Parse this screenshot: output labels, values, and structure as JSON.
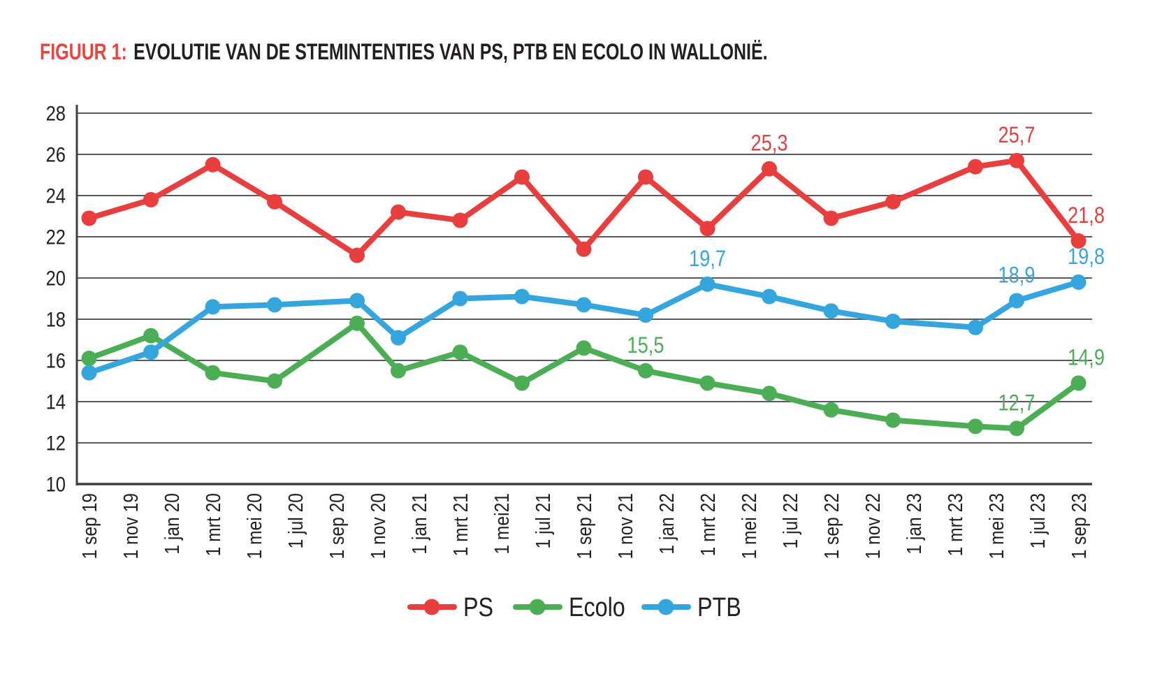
{
  "title": {
    "prefix": "FIGUUR 1:",
    "text": "EVOLUTIE VAN DE STEMINTENTIES VAN PS, PTB EN ECOLO IN WALLONIË."
  },
  "colors": {
    "title_accent": "#e8463c",
    "ps": "#e83e3e",
    "ecolo": "#4bae55",
    "ptb": "#35a6dd",
    "gridline": "#59595b",
    "axis": "#3f3f41",
    "text": "#231f20"
  },
  "chart_data": {
    "type": "line",
    "title": "FIGUUR 1: EVOLUTIE VAN DE STEMINTENTIES VAN PS, PTB EN ECOLO IN WALLONIË.",
    "ylim": [
      10,
      28
    ],
    "y_step": 2,
    "grid": "horizontal",
    "x_tick_labels": [
      "1 sep 19",
      "1 nov 19",
      "1 jan 20",
      "1 mrt 20",
      "1 mei 20",
      "1 jul 20",
      "1 sep 20",
      "1 nov 20",
      "1 jan 21",
      "1 mrt 21",
      "1 mei21",
      "1 jul 21",
      "1 sep 21",
      "1 nov 21",
      "1 jan 22",
      "1 mrt 22",
      "1 mei 22",
      "1 jul 22",
      "1 sep 22",
      "1 nov 22",
      "1 jan 23",
      "1 mrt 23",
      "1 mei 23",
      "1 jul 23",
      "1 sep 23"
    ],
    "x_tick_months": [
      0,
      2,
      4,
      6,
      8,
      10,
      12,
      14,
      16,
      18,
      20,
      22,
      24,
      26,
      28,
      30,
      32,
      34,
      36,
      38,
      40,
      42,
      44,
      46,
      48
    ],
    "x_months": [
      0,
      3,
      6,
      9,
      13,
      15,
      18,
      21,
      24,
      27,
      30,
      33,
      36,
      39,
      43,
      45,
      48
    ],
    "series": [
      {
        "name": "PS",
        "color": "#e83e3e",
        "values": [
          22.9,
          23.8,
          25.5,
          23.7,
          21.1,
          23.2,
          22.8,
          24.9,
          21.4,
          24.9,
          22.4,
          25.3,
          22.9,
          23.7,
          25.4,
          25.7,
          21.8
        ]
      },
      {
        "name": "Ecolo",
        "color": "#4bae55",
        "values": [
          16.1,
          17.2,
          15.4,
          15.0,
          17.8,
          15.5,
          16.4,
          14.9,
          16.6,
          15.5,
          14.9,
          14.4,
          13.6,
          13.1,
          12.8,
          12.7,
          14.9
        ]
      },
      {
        "name": "PTB",
        "color": "#35a6dd",
        "values": [
          15.4,
          16.4,
          18.6,
          18.7,
          18.9,
          17.1,
          19.0,
          19.1,
          18.7,
          18.2,
          19.7,
          19.1,
          18.4,
          17.9,
          17.6,
          18.9,
          19.8
        ]
      }
    ],
    "annotations": [
      {
        "series": "PS",
        "index": 11,
        "label": "25,3",
        "edge": false
      },
      {
        "series": "PS",
        "index": 15,
        "label": "25,7",
        "edge": false
      },
      {
        "series": "PS",
        "index": 16,
        "label": "21,8",
        "edge": true
      },
      {
        "series": "PTB",
        "index": 10,
        "label": "19,7",
        "edge": false
      },
      {
        "series": "PTB",
        "index": 15,
        "label": "18,9",
        "edge": false
      },
      {
        "series": "PTB",
        "index": 16,
        "label": "19,8",
        "edge": true
      },
      {
        "series": "Ecolo",
        "index": 9,
        "label": "15,5",
        "edge": false
      },
      {
        "series": "Ecolo",
        "index": 15,
        "label": "12,7",
        "edge": false
      },
      {
        "series": "Ecolo",
        "index": 16,
        "label": "14,9",
        "edge": true
      }
    ],
    "legend": {
      "position": "bottom-center",
      "entries": [
        "PS",
        "Ecolo",
        "PTB"
      ]
    }
  }
}
